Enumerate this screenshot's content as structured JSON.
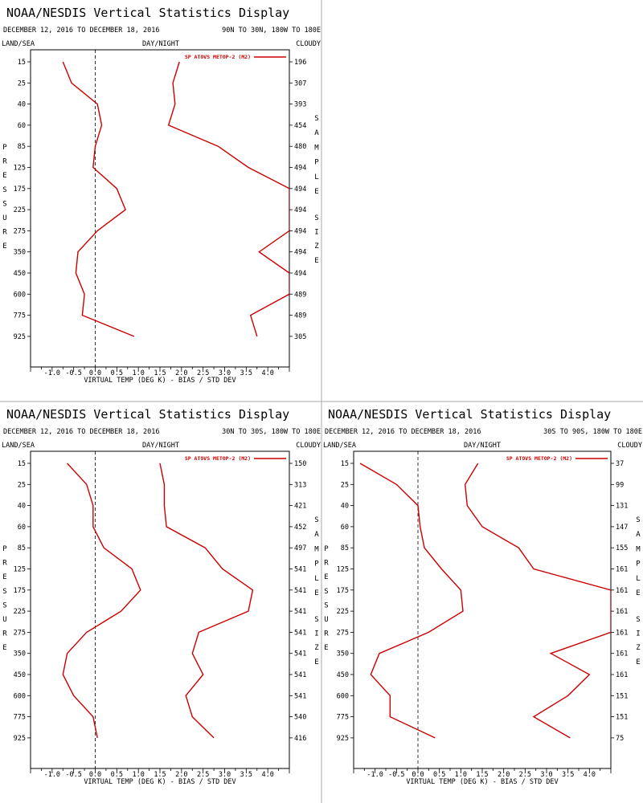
{
  "title": "NOAA/NESDIS Vertical Statistics Display",
  "date_range": "DECEMBER 12, 2016 TO DECEMBER 18, 2016",
  "filters": {
    "left": "LAND/SEA",
    "center": "DAY/NIGHT",
    "right": "CLOUDY"
  },
  "ylabel": "PRESSURE",
  "y2label": [
    "SAMPLE",
    "SIZE"
  ],
  "xlabel": "VIRTUAL TEMP (DEG K) - BIAS / STD DEV",
  "legend": "SP ATOVS METOP-2 (M2)",
  "colors": {
    "series": "#cc0000",
    "axis": "#000000",
    "divider": "#aaaaaa"
  },
  "chart_data": [
    {
      "type": "line",
      "region": "90N TO 30N, 180W TO 180E",
      "pressure_levels": [
        "15",
        "25",
        "40",
        "60",
        "85",
        "125",
        "175",
        "225",
        "275",
        "350",
        "450",
        "600",
        "775",
        "925"
      ],
      "x_ticks": [
        "-1.0",
        "-0.5",
        "0.0",
        "0.5",
        "1.0",
        "1.5",
        "2.0",
        "2.5",
        "3.0",
        "3.5",
        "4.0"
      ],
      "xlim": [
        -1.5,
        4.5
      ],
      "series": [
        {
          "name": "BIAS",
          "values": [
            -0.75,
            -0.55,
            0.05,
            0.15,
            0.0,
            -0.05,
            0.5,
            0.7,
            0.05,
            -0.4,
            -0.45,
            -0.25,
            -0.3,
            0.9
          ]
        },
        {
          "name": "STD DEV",
          "values": [
            1.95,
            1.8,
            1.85,
            1.7,
            2.85,
            3.55,
            4.5,
            4.5,
            4.5,
            3.8,
            4.5,
            4.5,
            3.6,
            3.75
          ]
        }
      ],
      "sample_size": [
        "196",
        "307",
        "393",
        "454",
        "480",
        "494",
        "494",
        "494",
        "494",
        "494",
        "494",
        "489",
        "489",
        "305"
      ]
    },
    {
      "type": "line",
      "region": "30N TO 30S, 180W TO 180E",
      "pressure_levels": [
        "15",
        "25",
        "40",
        "60",
        "85",
        "125",
        "175",
        "225",
        "275",
        "350",
        "450",
        "600",
        "775",
        "925"
      ],
      "x_ticks": [
        "-1.0",
        "-0.5",
        "0.0",
        "0.5",
        "1.0",
        "1.5",
        "2.0",
        "2.5",
        "3.0",
        "3.5",
        "4.0"
      ],
      "xlim": [
        -1.5,
        4.5
      ],
      "series": [
        {
          "name": "BIAS",
          "values": [
            -0.65,
            -0.2,
            -0.05,
            -0.05,
            0.2,
            0.85,
            1.05,
            0.6,
            -0.2,
            -0.65,
            -0.75,
            -0.5,
            -0.05,
            0.05
          ]
        },
        {
          "name": "STD DEV",
          "values": [
            1.5,
            1.6,
            1.6,
            1.65,
            2.55,
            2.95,
            3.65,
            3.55,
            2.4,
            2.25,
            2.5,
            2.1,
            2.25,
            2.75
          ]
        }
      ],
      "sample_size": [
        "150",
        "313",
        "421",
        "452",
        "497",
        "541",
        "541",
        "541",
        "541",
        "541",
        "541",
        "541",
        "540",
        "416"
      ]
    },
    {
      "type": "line",
      "region": "30S TO 90S, 180W TO 180E",
      "pressure_levels": [
        "15",
        "25",
        "40",
        "60",
        "85",
        "125",
        "175",
        "225",
        "275",
        "350",
        "450",
        "600",
        "775",
        "925"
      ],
      "x_ticks": [
        "-1.0",
        "-0.5",
        "0.0",
        "0.5",
        "1.0",
        "1.5",
        "2.0",
        "2.5",
        "3.0",
        "3.5",
        "4.0"
      ],
      "xlim": [
        -1.5,
        4.5
      ],
      "series": [
        {
          "name": "BIAS",
          "values": [
            -1.35,
            -0.5,
            0.0,
            0.05,
            0.15,
            0.55,
            1.0,
            1.05,
            0.25,
            -0.9,
            -1.1,
            -0.65,
            -0.65,
            0.4
          ]
        },
        {
          "name": "STD DEV",
          "values": [
            1.4,
            1.1,
            1.15,
            1.5,
            2.35,
            2.7,
            4.5,
            4.5,
            4.5,
            3.1,
            4.0,
            3.5,
            2.7,
            3.55
          ]
        }
      ],
      "sample_size": [
        "37",
        "99",
        "131",
        "147",
        "155",
        "161",
        "161",
        "161",
        "161",
        "161",
        "161",
        "151",
        "151",
        "75"
      ]
    }
  ]
}
